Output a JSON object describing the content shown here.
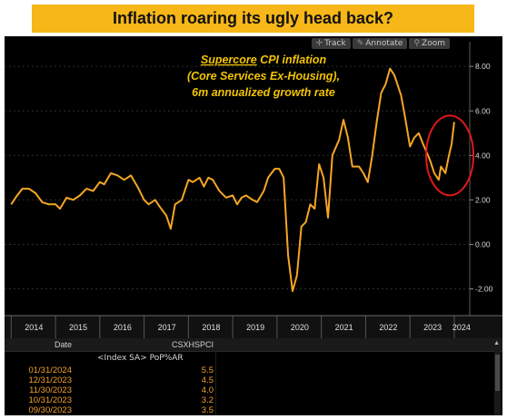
{
  "banner": {
    "title": "Inflation roaring its ugly head back?"
  },
  "toolbar": {
    "track": "Track",
    "annotate": "Annotate",
    "zoom": "Zoom"
  },
  "annotation": {
    "word1": "Supercore",
    "word2": " CPI inflation",
    "line2": "(Core Services Ex-Housing),",
    "line3": "6m annualized growth rate"
  },
  "colors": {
    "line": "#f5a623",
    "annotation": "#f2c400",
    "circle": "#e01818",
    "banner": "#f7b718"
  },
  "chart_data": {
    "type": "line",
    "series": [
      {
        "name": "CSXHSPCI",
        "points": [
          [
            2014.0,
            1.8
          ],
          [
            2014.1,
            2.1
          ],
          [
            2014.25,
            2.5
          ],
          [
            2014.4,
            2.5
          ],
          [
            2014.55,
            2.3
          ],
          [
            2014.7,
            1.9
          ],
          [
            2014.85,
            1.8
          ],
          [
            2015.0,
            1.8
          ],
          [
            2015.1,
            1.6
          ],
          [
            2015.25,
            2.1
          ],
          [
            2015.4,
            2.0
          ],
          [
            2015.55,
            2.2
          ],
          [
            2015.7,
            2.5
          ],
          [
            2015.85,
            2.4
          ],
          [
            2016.0,
            2.8
          ],
          [
            2016.1,
            2.7
          ],
          [
            2016.25,
            3.2
          ],
          [
            2016.4,
            3.1
          ],
          [
            2016.55,
            2.9
          ],
          [
            2016.7,
            3.1
          ],
          [
            2016.85,
            2.6
          ],
          [
            2017.0,
            2.0
          ],
          [
            2017.1,
            1.8
          ],
          [
            2017.25,
            2.0
          ],
          [
            2017.35,
            1.7
          ],
          [
            2017.5,
            1.3
          ],
          [
            2017.6,
            0.7
          ],
          [
            2017.7,
            1.8
          ],
          [
            2017.85,
            2.0
          ],
          [
            2018.0,
            2.9
          ],
          [
            2018.1,
            2.8
          ],
          [
            2018.25,
            3.0
          ],
          [
            2018.35,
            2.6
          ],
          [
            2018.45,
            3.0
          ],
          [
            2018.55,
            2.9
          ],
          [
            2018.7,
            2.4
          ],
          [
            2018.85,
            2.1
          ],
          [
            2019.0,
            2.2
          ],
          [
            2019.1,
            1.8
          ],
          [
            2019.2,
            2.1
          ],
          [
            2019.3,
            2.2
          ],
          [
            2019.45,
            2.0
          ],
          [
            2019.55,
            1.9
          ],
          [
            2019.7,
            2.4
          ],
          [
            2019.8,
            3.0
          ],
          [
            2019.95,
            3.4
          ],
          [
            2020.05,
            3.4
          ],
          [
            2020.15,
            3.0
          ],
          [
            2020.25,
            -0.5
          ],
          [
            2020.35,
            -2.1
          ],
          [
            2020.45,
            -1.4
          ],
          [
            2020.55,
            0.8
          ],
          [
            2020.65,
            1.0
          ],
          [
            2020.75,
            1.8
          ],
          [
            2020.85,
            1.6
          ],
          [
            2020.95,
            3.6
          ],
          [
            2021.05,
            3.0
          ],
          [
            2021.15,
            1.2
          ],
          [
            2021.25,
            4.0
          ],
          [
            2021.4,
            4.7
          ],
          [
            2021.5,
            5.6
          ],
          [
            2021.6,
            4.8
          ],
          [
            2021.7,
            3.5
          ],
          [
            2021.85,
            3.5
          ],
          [
            2021.95,
            3.2
          ],
          [
            2022.05,
            2.8
          ],
          [
            2022.15,
            4.0
          ],
          [
            2022.25,
            5.5
          ],
          [
            2022.35,
            6.8
          ],
          [
            2022.45,
            7.2
          ],
          [
            2022.55,
            7.9
          ],
          [
            2022.65,
            7.6
          ],
          [
            2022.8,
            6.7
          ],
          [
            2022.9,
            5.6
          ],
          [
            2023.0,
            4.4
          ],
          [
            2023.1,
            4.8
          ],
          [
            2023.2,
            5.0
          ],
          [
            2023.3,
            4.5
          ],
          [
            2023.45,
            3.8
          ],
          [
            2023.55,
            3.2
          ],
          [
            2023.65,
            2.9
          ],
          [
            2023.7,
            3.5
          ],
          [
            2023.8,
            3.2
          ],
          [
            2023.88,
            4.0
          ],
          [
            2023.94,
            4.5
          ],
          [
            2024.0,
            5.5
          ]
        ]
      }
    ],
    "xlim": [
      2013.85,
      2024.35
    ],
    "ylim": [
      -3.2,
      8.7
    ],
    "y_ticks": [
      -2,
      0,
      2,
      4,
      6,
      8
    ],
    "y_tick_labels": [
      "-2.00",
      "0.00",
      "2.00",
      "4.00",
      "6.00",
      "8.00"
    ],
    "x_ticks": [
      2014,
      2015,
      2016,
      2017,
      2018,
      2019,
      2020,
      2021,
      2022,
      2023,
      2024
    ],
    "x_tick_labels": [
      "2014",
      "2015",
      "2016",
      "2017",
      "2018",
      "2019",
      "2020",
      "2021",
      "2022",
      "2023",
      "2024"
    ],
    "grid": true,
    "circle_center": [
      2023.9,
      4.0
    ]
  },
  "table": {
    "col_date": "Date",
    "col_ticker": "CSXHSPCI",
    "subheader": "<Index SA> PoP%AR",
    "rows": [
      {
        "date": "01/31/2024",
        "value": "5.5"
      },
      {
        "date": "12/31/2023",
        "value": "4.5"
      },
      {
        "date": "11/30/2023",
        "value": "4.0"
      },
      {
        "date": "10/31/2023",
        "value": "3.2"
      },
      {
        "date": "09/30/2023",
        "value": "3.5"
      }
    ]
  }
}
